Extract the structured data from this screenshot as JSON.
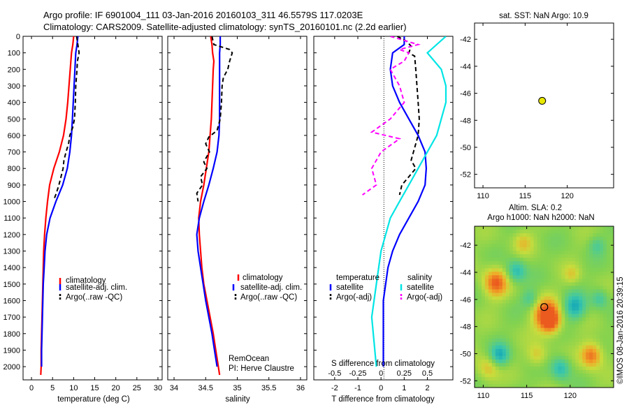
{
  "header": {
    "line1": "Argo profile: IF 6901004_111 03-Jan-2016 20160103_311 46.5579S 117.0203E",
    "line2": "Climatology: CARS2009. Satellite-adjusted climatology: synTS_20160101.nc (2.2d earlier)"
  },
  "watermark": "©IMOS 08-Jan-2016 20:39:15",
  "colors": {
    "climatology": "#ff0000",
    "satellite": "#0000ff",
    "argo": "#000000",
    "sat_diff_S": "#00e5e5",
    "argo_diff_S": "#ff00ff"
  },
  "chart_data": [
    {
      "type": "line",
      "id": "temperature",
      "xlabel": "temperature (deg C)",
      "xticks": [
        "0",
        "5",
        "10",
        "15",
        "20",
        "25",
        "30"
      ],
      "yticks": [
        "0",
        "100",
        "200",
        "300",
        "400",
        "500",
        "600",
        "700",
        "800",
        "900",
        "1000",
        "1100",
        "1200",
        "1300",
        "1400",
        "1500",
        "1600",
        "1700",
        "1800",
        "1900",
        "2000"
      ],
      "xlim": [
        -2,
        31
      ],
      "ylim": [
        2080,
        0
      ],
      "legend": [
        "climatology",
        "satellite-adj. clim.",
        "Argo(..raw -QC)"
      ],
      "series": [
        {
          "name": "climatology",
          "points": [
            [
              10.0,
              0
            ],
            [
              9.8,
              50
            ],
            [
              9.5,
              100
            ],
            [
              9.2,
              200
            ],
            [
              8.9,
              300
            ],
            [
              8.6,
              400
            ],
            [
              8.2,
              500
            ],
            [
              7.6,
              600
            ],
            [
              6.6,
              700
            ],
            [
              5.3,
              800
            ],
            [
              4.3,
              900
            ],
            [
              3.8,
              1000
            ],
            [
              3.4,
              1100
            ],
            [
              3.1,
              1200
            ],
            [
              2.9,
              1300
            ],
            [
              2.8,
              1400
            ],
            [
              2.7,
              1500
            ],
            [
              2.6,
              1600
            ],
            [
              2.5,
              1700
            ],
            [
              2.4,
              1800
            ],
            [
              2.3,
              1900
            ],
            [
              2.3,
              2000
            ],
            [
              2.2,
              2050
            ]
          ]
        },
        {
          "name": "satellite-adj. clim.",
          "points": [
            [
              11.0,
              0
            ],
            [
              10.8,
              50
            ],
            [
              10.5,
              100
            ],
            [
              10.3,
              200
            ],
            [
              10.1,
              300
            ],
            [
              9.9,
              400
            ],
            [
              9.7,
              500
            ],
            [
              9.5,
              600
            ],
            [
              9.1,
              700
            ],
            [
              8.5,
              800
            ],
            [
              7.4,
              900
            ],
            [
              5.8,
              1000
            ],
            [
              4.4,
              1100
            ],
            [
              3.6,
              1200
            ],
            [
              3.2,
              1300
            ],
            [
              3.0,
              1400
            ],
            [
              2.8,
              1500
            ],
            [
              2.7,
              1600
            ],
            [
              2.6,
              1700
            ],
            [
              2.5,
              1800
            ],
            [
              2.4,
              1900
            ],
            [
              2.4,
              2000
            ]
          ]
        },
        {
          "name": "Argo(..raw -QC)",
          "points": [
            [
              10.7,
              0
            ],
            [
              11.0,
              50
            ],
            [
              11.3,
              100
            ],
            [
              10.9,
              150
            ],
            [
              10.8,
              200
            ],
            [
              10.5,
              300
            ],
            [
              10.4,
              400
            ],
            [
              10.2,
              500
            ],
            [
              9.8,
              550
            ],
            [
              9.1,
              600
            ],
            [
              8.8,
              650
            ],
            [
              8.2,
              700
            ],
            [
              7.7,
              750
            ],
            [
              7.5,
              800
            ],
            [
              7.0,
              850
            ],
            [
              6.5,
              900
            ],
            [
              5.9,
              950
            ],
            [
              5.3,
              990
            ]
          ]
        }
      ]
    },
    {
      "type": "line",
      "id": "salinity",
      "xlabel": "salinity",
      "xticks": [
        "34",
        "34.5",
        "35",
        "35.5",
        "36"
      ],
      "xlim": [
        33.9,
        36.1
      ],
      "ylim": [
        2080,
        0
      ],
      "legend": [
        "climatology",
        "satellite-adj. clim.",
        "Argo(..raw -QC)"
      ],
      "annotation": [
        "RemOcean",
        "PI: Herve Claustre"
      ],
      "series": [
        {
          "name": "climatology",
          "points": [
            [
              34.58,
              0
            ],
            [
              34.6,
              50
            ],
            [
              34.61,
              100
            ],
            [
              34.63,
              150
            ],
            [
              34.62,
              200
            ],
            [
              34.61,
              300
            ],
            [
              34.6,
              400
            ],
            [
              34.59,
              500
            ],
            [
              34.57,
              600
            ],
            [
              34.55,
              700
            ],
            [
              34.51,
              800
            ],
            [
              34.47,
              900
            ],
            [
              34.42,
              1000
            ],
            [
              34.39,
              1100
            ],
            [
              34.4,
              1200
            ],
            [
              34.42,
              1300
            ],
            [
              34.44,
              1400
            ],
            [
              34.47,
              1500
            ],
            [
              34.52,
              1600
            ],
            [
              34.57,
              1700
            ],
            [
              34.62,
              1800
            ],
            [
              34.66,
              1900
            ],
            [
              34.7,
              2000
            ],
            [
              34.72,
              2050
            ]
          ]
        },
        {
          "name": "satellite-adj. clim.",
          "points": [
            [
              34.73,
              0
            ],
            [
              34.73,
              50
            ],
            [
              34.72,
              100
            ],
            [
              34.72,
              200
            ],
            [
              34.72,
              300
            ],
            [
              34.72,
              400
            ],
            [
              34.72,
              500
            ],
            [
              34.71,
              600
            ],
            [
              34.68,
              700
            ],
            [
              34.62,
              800
            ],
            [
              34.55,
              900
            ],
            [
              34.47,
              1000
            ],
            [
              34.4,
              1100
            ],
            [
              34.36,
              1200
            ],
            [
              34.38,
              1300
            ],
            [
              34.42,
              1400
            ],
            [
              34.46,
              1500
            ],
            [
              34.5,
              1600
            ],
            [
              34.55,
              1700
            ],
            [
              34.6,
              1800
            ],
            [
              34.64,
              1900
            ],
            [
              34.68,
              2000
            ]
          ]
        },
        {
          "name": "Argo(..raw -QC)",
          "points": [
            [
              34.6,
              0
            ],
            [
              34.63,
              50
            ],
            [
              34.88,
              80
            ],
            [
              34.92,
              100
            ],
            [
              34.88,
              150
            ],
            [
              34.85,
              200
            ],
            [
              34.78,
              250
            ],
            [
              34.76,
              300
            ],
            [
              34.75,
              400
            ],
            [
              34.73,
              500
            ],
            [
              34.68,
              570
            ],
            [
              34.55,
              610
            ],
            [
              34.5,
              650
            ],
            [
              34.56,
              700
            ],
            [
              34.47,
              760
            ],
            [
              34.52,
              800
            ],
            [
              34.42,
              850
            ],
            [
              34.45,
              900
            ],
            [
              34.36,
              950
            ],
            [
              34.38,
              1000
            ]
          ]
        }
      ]
    },
    {
      "type": "line",
      "id": "difference",
      "xlabel": "T difference from climatology",
      "xlabel_top": "S difference from climatology",
      "xticks": [
        "-2",
        "-1",
        "0",
        "1",
        "2"
      ],
      "xticks_top": [
        "-0.5",
        "-0.25",
        "0",
        "0.25",
        "0.5"
      ],
      "xlim": [
        -2.9,
        3.1
      ],
      "ylim": [
        2080,
        0
      ],
      "legend_titles": [
        "temperature",
        "salinity"
      ],
      "legend": [
        "satellite",
        "Argo(-adj)",
        "satellite",
        "Argo(-adj)"
      ],
      "series": [
        {
          "name": "T satellite",
          "points": [
            [
              1.0,
              0
            ],
            [
              1.0,
              50
            ],
            [
              0.5,
              100
            ],
            [
              0.4,
              200
            ],
            [
              0.5,
              300
            ],
            [
              0.8,
              400
            ],
            [
              1.2,
              500
            ],
            [
              1.6,
              600
            ],
            [
              1.9,
              700
            ],
            [
              1.95,
              800
            ],
            [
              1.9,
              900
            ],
            [
              1.6,
              1000
            ],
            [
              1.2,
              1100
            ],
            [
              0.8,
              1200
            ],
            [
              0.5,
              1300
            ],
            [
              0.3,
              1400
            ],
            [
              0.2,
              1500
            ],
            [
              0.1,
              1600
            ],
            [
              0.1,
              1700
            ],
            [
              0.1,
              1800
            ],
            [
              0.1,
              1900
            ],
            [
              0.1,
              2000
            ]
          ]
        },
        {
          "name": "T Argo(-adj)",
          "points": [
            [
              0.7,
              0
            ],
            [
              1.1,
              30
            ],
            [
              1.3,
              60
            ],
            [
              1.2,
              100
            ],
            [
              1.45,
              120
            ],
            [
              1.5,
              200
            ],
            [
              1.55,
              300
            ],
            [
              1.6,
              400
            ],
            [
              1.65,
              500
            ],
            [
              1.6,
              600
            ],
            [
              1.4,
              700
            ],
            [
              1.3,
              750
            ],
            [
              1.5,
              800
            ],
            [
              1.2,
              850
            ],
            [
              0.9,
              900
            ],
            [
              0.8,
              960
            ]
          ]
        },
        {
          "name": "S satellite",
          "points": [
            [
              0.7,
              0
            ],
            [
              0.5,
              100
            ],
            [
              0.65,
              200
            ],
            [
              0.7,
              300
            ],
            [
              0.7,
              400
            ],
            [
              0.65,
              500
            ],
            [
              0.6,
              600
            ],
            [
              0.5,
              700
            ],
            [
              0.4,
              800
            ],
            [
              0.3,
              900
            ],
            [
              0.2,
              1000
            ],
            [
              0.1,
              1100
            ],
            [
              0.0,
              1300
            ],
            [
              -0.05,
              1500
            ],
            [
              -0.1,
              1700
            ],
            [
              -0.05,
              2000
            ]
          ]
        },
        {
          "name": "S Argo(-adj)",
          "points": [
            [
              0.1,
              0
            ],
            [
              0.4,
              50
            ],
            [
              0.2,
              80
            ],
            [
              0.3,
              100
            ],
            [
              0.25,
              150
            ],
            [
              0.1,
              200
            ],
            [
              0.2,
              300
            ],
            [
              0.25,
              400
            ],
            [
              0.1,
              500
            ],
            [
              -0.1,
              580
            ],
            [
              0.2,
              620
            ],
            [
              0.0,
              700
            ],
            [
              -0.1,
              800
            ],
            [
              -0.05,
              900
            ],
            [
              -0.2,
              960
            ]
          ]
        }
      ]
    },
    {
      "type": "scatter",
      "id": "sst-map",
      "title": "sat. SST: NaN Argo: 10.9",
      "xticks": [
        "110",
        "115",
        "120"
      ],
      "yticks": [
        "-42",
        "-44",
        "-46",
        "-48",
        "-50",
        "-52"
      ],
      "xlim": [
        109.0,
        125.5
      ],
      "ylim": [
        -53.0,
        -40.8
      ],
      "point": {
        "lon": 117.02,
        "lat": -46.56
      }
    },
    {
      "type": "heatmap",
      "id": "sla-map",
      "title_line1": "Altim. SLA: 0.2",
      "title_line2": "Argo h1000: NaN h2000: NaN",
      "xticks": [
        "110",
        "115",
        "120"
      ],
      "yticks": [
        "-42",
        "-44",
        "-46",
        "-48",
        "-50",
        "-52"
      ],
      "xlim": [
        109.0,
        125.0
      ],
      "ylim": [
        -52.5,
        -40.6
      ],
      "point": {
        "lon": 117.02,
        "lat": -46.56
      }
    }
  ]
}
